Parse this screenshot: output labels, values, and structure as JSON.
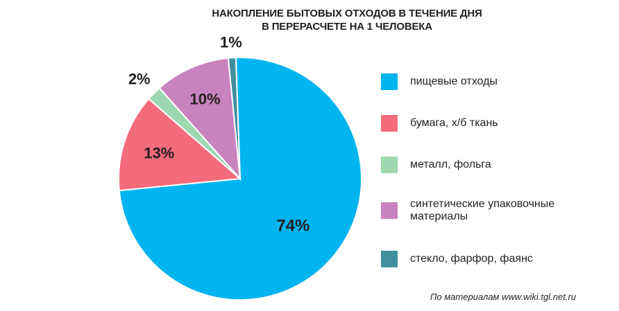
{
  "chart_data": {
    "type": "pie",
    "title_lines": [
      "НАКОПЛЕНИЕ БЫТОВЫХ ОТХОДОВ В ТЕЧЕНИЕ ДНЯ",
      "В ПЕРЕРАСЧЕТЕ НА 1 ЧЕЛОВЕКА"
    ],
    "categories": [
      "пищевые отходы",
      "бумага, х/б ткань",
      "металл, фольга",
      "синтетические упаковочные материалы",
      "стекло, фарфор, фаянс"
    ],
    "values": [
      74,
      13,
      2,
      10,
      1
    ],
    "data_labels": [
      "74%",
      "13%",
      "2%",
      "10%",
      "1%"
    ],
    "colors": [
      "#00b4f0",
      "#f46b7b",
      "#9ed8b1",
      "#c883bf",
      "#3f8f9e"
    ],
    "legend_position": "right"
  },
  "source_note": "По материалам www.wiki.tgl.net.ru"
}
